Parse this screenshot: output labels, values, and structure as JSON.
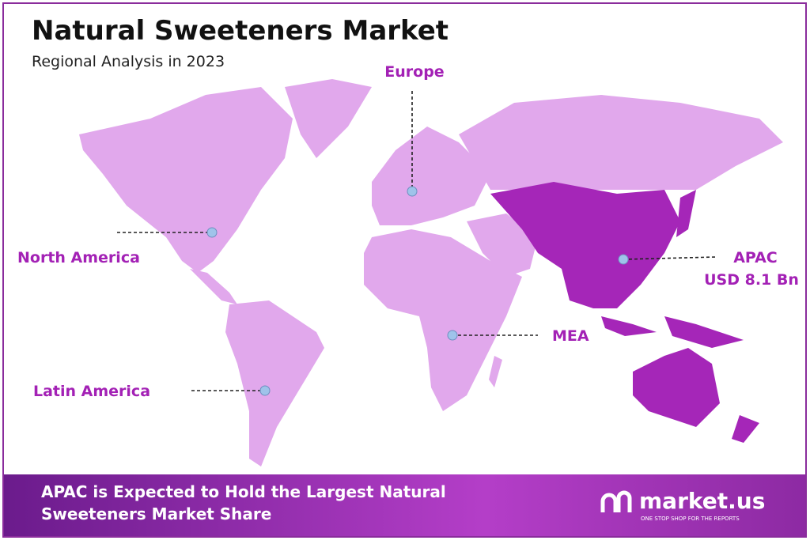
{
  "header": {
    "title": "Natural Sweeteners Market",
    "subtitle": "Regional Analysis in 2023"
  },
  "regions": [
    {
      "label": "Europe"
    },
    {
      "label": "North America"
    },
    {
      "label": "APAC",
      "value_label": "USD 8.1 Bn"
    },
    {
      "label": "MEA"
    },
    {
      "label": "Latin America"
    }
  ],
  "footer": {
    "headline": "APAC is Expected to Hold the Largest Natural Sweeteners Market Share",
    "brand": "market.us",
    "tagline": "ONE STOP SHOP FOR THE REPORTS"
  }
}
